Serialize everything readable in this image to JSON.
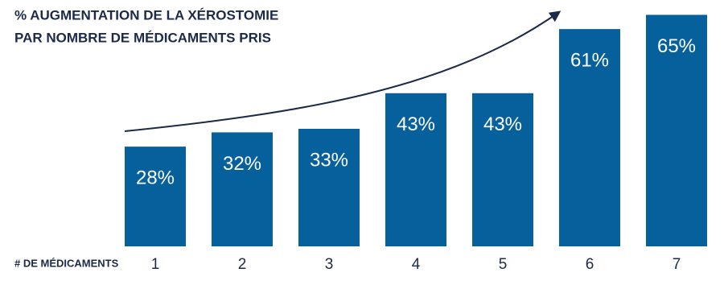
{
  "chart_data": {
    "type": "bar",
    "title": [
      "% AUGMENTATION DE LA XÉROSTOMIE",
      "PAR NOMBRE DE MÉDICAMENTS PRIS"
    ],
    "x_label": "# DE MÉDICAMENTS",
    "categories": [
      "1",
      "2",
      "3",
      "4",
      "5",
      "6",
      "7"
    ],
    "values": [
      28,
      32,
      33,
      43,
      43,
      61,
      65
    ],
    "value_labels": [
      "28%",
      "32%",
      "33%",
      "43%",
      "43%",
      "61%",
      "65%"
    ],
    "color": "#05609b",
    "ylim": [
      0,
      66
    ]
  }
}
